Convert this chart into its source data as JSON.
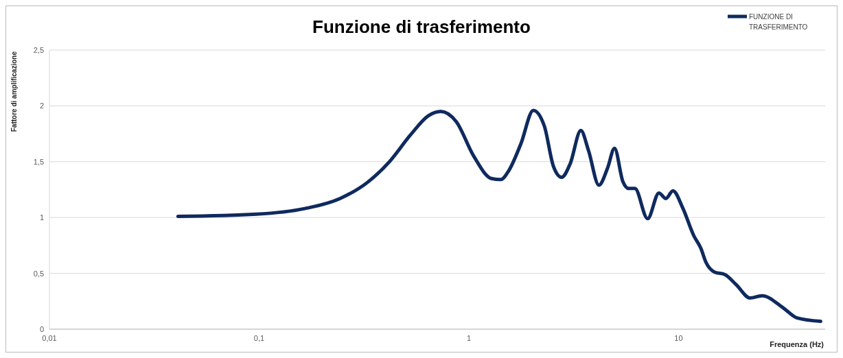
{
  "chart_data": {
    "type": "line",
    "title": "Funzione di trasferimento",
    "xlabel": "Frequenza (Hz)",
    "ylabel": "Fattore di amplificazione",
    "log": "x",
    "xlim": [
      0.01,
      50
    ],
    "xticks": [
      {
        "value": 0.01,
        "label": "0,01"
      },
      {
        "value": 0.1,
        "label": "0,1"
      },
      1,
      10
    ],
    "ylim": [
      0,
      2.5
    ],
    "yticks": [
      0,
      {
        "value": 0.5,
        "label": "0,5"
      },
      1,
      {
        "value": 1.5,
        "label": "1,5"
      },
      2,
      {
        "value": 2.5,
        "label": "2,5"
      }
    ],
    "grid": "y",
    "legend": "top right",
    "marker": "none",
    "line_style": "solid",
    "series": [
      {
        "name": "FUNZIONE DI TRASFERIMENTO",
        "color": "#0f2a5e",
        "x": [
          0.041,
          0.097,
          0.165,
          0.243,
          0.331,
          0.418,
          0.527,
          0.639,
          0.734,
          0.87,
          1.055,
          1.28,
          1.42,
          1.55,
          1.77,
          2.03,
          2.29,
          2.53,
          2.77,
          3.04,
          3.42,
          3.72,
          4.17,
          4.58,
          4.95,
          5.43,
          5.77,
          6.19,
          7.12,
          8.06,
          8.7,
          9.4,
          10.5,
          11.8,
          12.8,
          13.5,
          14.9,
          16.6,
          18.8,
          21.9,
          25.0,
          31.6,
          36.8,
          47.6
        ],
        "values": [
          1.01,
          1.03,
          1.08,
          1.17,
          1.32,
          1.5,
          1.74,
          1.91,
          1.95,
          1.86,
          1.55,
          1.35,
          1.34,
          1.42,
          1.66,
          1.96,
          1.82,
          1.46,
          1.36,
          1.48,
          1.78,
          1.6,
          1.29,
          1.44,
          1.62,
          1.32,
          1.26,
          1.26,
          0.99,
          1.22,
          1.17,
          1.24,
          1.08,
          0.84,
          0.72,
          0.6,
          0.51,
          0.49,
          0.4,
          0.28,
          0.3,
          0.19,
          0.1,
          0.07
        ]
      }
    ]
  }
}
